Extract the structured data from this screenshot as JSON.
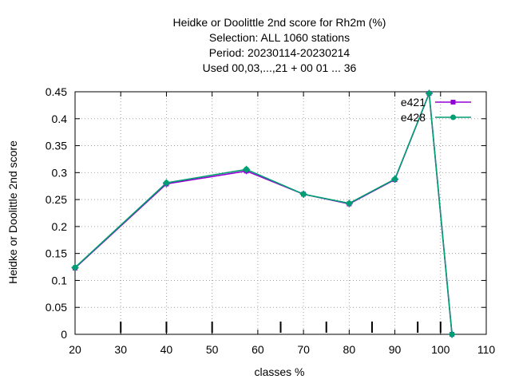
{
  "chart_data": {
    "type": "line",
    "title_lines": [
      "Heidke or Doolittle 2nd score  for Rh2m (%)",
      "Selection: ALL   1060 stations",
      "Period: 20230114-20230214",
      "Used  00,03,...,21  + 00 01 ... 36"
    ],
    "xlabel": "classes %",
    "ylabel": "Heidke or Doolittle 2nd score",
    "xlim": [
      20,
      110
    ],
    "ylim": [
      0,
      0.45
    ],
    "xticks": [
      20,
      30,
      40,
      50,
      60,
      70,
      80,
      90,
      100,
      110
    ],
    "yticks": [
      0,
      0.05,
      0.1,
      0.15,
      0.2,
      0.25,
      0.3,
      0.35,
      0.4,
      0.45
    ],
    "ytick_labels": [
      "0",
      "0.05",
      "0.1",
      "0.15",
      "0.2",
      "0.25",
      "0.3",
      "0.35",
      "0.4",
      "0.45"
    ],
    "grid": true,
    "legend_position": "top-right",
    "threshold_ticks_x": [
      30,
      40,
      50,
      65,
      75,
      85,
      95,
      100
    ],
    "series": [
      {
        "name": "e421",
        "color": "#9400d3",
        "x": [
          20,
          40,
          57.5,
          70,
          80,
          90,
          97.5,
          102.5
        ],
        "y": [
          0.123,
          0.279,
          0.303,
          0.26,
          0.242,
          0.287,
          0.447,
          0.0
        ]
      },
      {
        "name": "e428",
        "color": "#009e73",
        "x": [
          20,
          40,
          57.5,
          70,
          80,
          90,
          97.5,
          102.5
        ],
        "y": [
          0.124,
          0.281,
          0.306,
          0.26,
          0.243,
          0.288,
          0.447,
          0.0
        ]
      }
    ]
  }
}
